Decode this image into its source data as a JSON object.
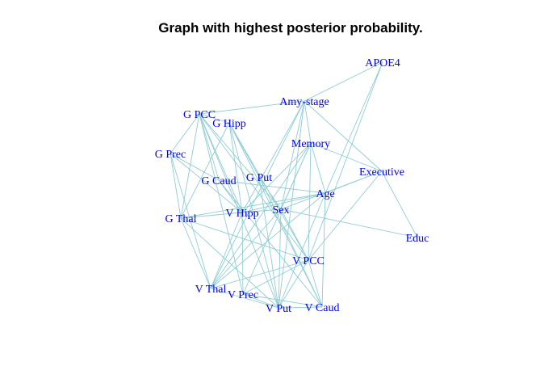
{
  "title": "Graph with highest posterior probability.",
  "colors": {
    "edge": "#8ecdd6",
    "label": "#0000ee",
    "title": "#000000"
  },
  "nodes": [
    {
      "id": "apoe4",
      "label": "APOE4"
    },
    {
      "id": "amy",
      "label": "Amy-stage"
    },
    {
      "id": "gpcc",
      "label": "G PCC"
    },
    {
      "id": "ghipp",
      "label": "G Hipp"
    },
    {
      "id": "memory",
      "label": "Memory"
    },
    {
      "id": "gprec",
      "label": "G Prec"
    },
    {
      "id": "executive",
      "label": "Executive"
    },
    {
      "id": "gput",
      "label": "G Put"
    },
    {
      "id": "gcaud",
      "label": "G Caud"
    },
    {
      "id": "age",
      "label": "Age"
    },
    {
      "id": "sex",
      "label": "Sex"
    },
    {
      "id": "vhipp",
      "label": "V Hipp"
    },
    {
      "id": "gthal",
      "label": "G Thal"
    },
    {
      "id": "educ",
      "label": "Educ"
    },
    {
      "id": "vpcc",
      "label": "V PCC"
    },
    {
      "id": "vthal",
      "label": "V Thal"
    },
    {
      "id": "vprec",
      "label": "V Prec"
    },
    {
      "id": "vput",
      "label": "V Put"
    },
    {
      "id": "vcaud",
      "label": "V Caud"
    }
  ],
  "edges": [
    [
      "apoe4",
      "amy"
    ],
    [
      "apoe4",
      "age"
    ],
    [
      "apoe4",
      "vpcc"
    ],
    [
      "amy",
      "gpcc"
    ],
    [
      "amy",
      "memory"
    ],
    [
      "amy",
      "executive"
    ],
    [
      "amy",
      "sex"
    ],
    [
      "amy",
      "vhipp"
    ],
    [
      "amy",
      "vthal"
    ],
    [
      "amy",
      "vput"
    ],
    [
      "gpcc",
      "ghipp"
    ],
    [
      "gpcc",
      "gprec"
    ],
    [
      "gpcc",
      "gcaud"
    ],
    [
      "gpcc",
      "vhipp"
    ],
    [
      "gpcc",
      "gthal"
    ],
    [
      "gpcc",
      "sex"
    ],
    [
      "gpcc",
      "vprec"
    ],
    [
      "gpcc",
      "vpcc"
    ],
    [
      "gpcc",
      "vput"
    ],
    [
      "ghipp",
      "gput"
    ],
    [
      "ghipp",
      "vhipp"
    ],
    [
      "ghipp",
      "vcaud"
    ],
    [
      "ghipp",
      "vput"
    ],
    [
      "ghipp",
      "gthal"
    ],
    [
      "ghipp",
      "vpcc"
    ],
    [
      "memory",
      "executive"
    ],
    [
      "memory",
      "sex"
    ],
    [
      "memory",
      "vhipp"
    ],
    [
      "memory",
      "vthal"
    ],
    [
      "memory",
      "vpcc"
    ],
    [
      "memory",
      "age"
    ],
    [
      "memory",
      "vprec"
    ],
    [
      "gprec",
      "gcaud"
    ],
    [
      "gprec",
      "vhipp"
    ],
    [
      "gprec",
      "gthal"
    ],
    [
      "gprec",
      "vthal"
    ],
    [
      "executive",
      "age"
    ],
    [
      "executive",
      "educ"
    ],
    [
      "executive",
      "vpcc"
    ],
    [
      "executive",
      "sex"
    ],
    [
      "gput",
      "vput"
    ],
    [
      "gput",
      "sex"
    ],
    [
      "gput",
      "vcaud"
    ],
    [
      "gcaud",
      "age"
    ],
    [
      "gcaud",
      "vhipp"
    ],
    [
      "gcaud",
      "vcaud"
    ],
    [
      "age",
      "vhipp"
    ],
    [
      "age",
      "gthal"
    ],
    [
      "age",
      "vcaud"
    ],
    [
      "age",
      "vput"
    ],
    [
      "age",
      "vthal"
    ],
    [
      "sex",
      "educ"
    ],
    [
      "sex",
      "vpcc"
    ],
    [
      "sex",
      "vput"
    ],
    [
      "sex",
      "vthal"
    ],
    [
      "sex",
      "vhipp"
    ],
    [
      "vhipp",
      "vprec"
    ],
    [
      "vhipp",
      "vthal"
    ],
    [
      "vhipp",
      "gthal"
    ],
    [
      "gthal",
      "vthal"
    ],
    [
      "gthal",
      "vput"
    ],
    [
      "gthal",
      "vpcc"
    ],
    [
      "vpcc",
      "vthal"
    ],
    [
      "vpcc",
      "vprec"
    ],
    [
      "vpcc",
      "vput"
    ],
    [
      "vpcc",
      "vcaud"
    ],
    [
      "vthal",
      "vput"
    ],
    [
      "vprec",
      "vput"
    ],
    [
      "vput",
      "vcaud"
    ],
    [
      "vprec",
      "vcaud"
    ]
  ]
}
